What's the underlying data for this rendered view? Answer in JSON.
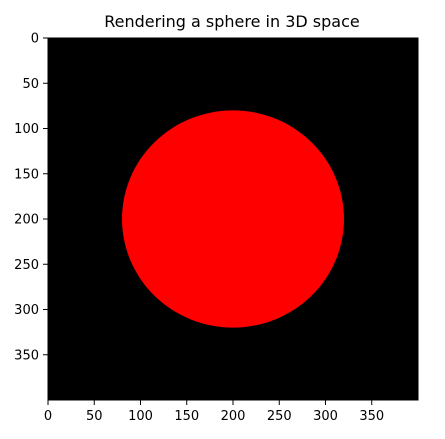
{
  "chart_data": {
    "type": "heatmap",
    "title": "Rendering a sphere in 3D space",
    "xlabel": "",
    "ylabel": "",
    "image_size": [
      400,
      400
    ],
    "xlim": [
      0,
      400
    ],
    "ylim": [
      400,
      0
    ],
    "x_ticks": [
      0,
      50,
      100,
      150,
      200,
      250,
      300,
      350
    ],
    "y_ticks": [
      0,
      50,
      100,
      150,
      200,
      250,
      300,
      350
    ],
    "grid": false,
    "background_color": "#000000",
    "sphere": {
      "center": [
        200,
        200
      ],
      "radius": 120,
      "color": "#ff0000"
    }
  }
}
